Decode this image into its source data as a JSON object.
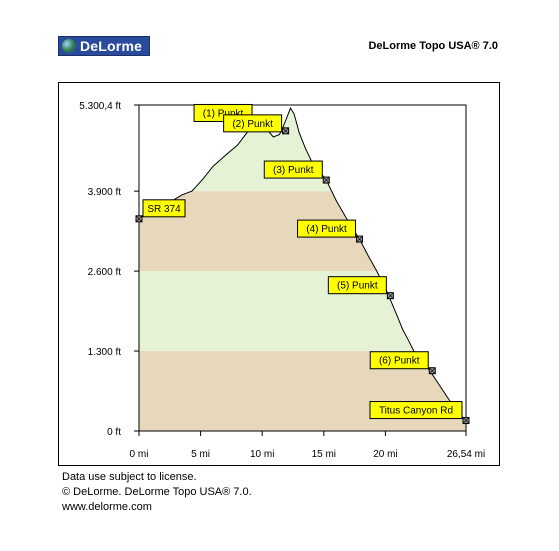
{
  "header": {
    "logo_text": "DeLorme",
    "app_title": "DeLorme Topo USA® 7.0"
  },
  "footer": {
    "line1": "Data use subject to license.",
    "line2": "© DeLorme. DeLorme Topo USA® 7.0.",
    "line3": "www.delorme.com"
  },
  "colors": {
    "band_dark": "#e7d8bc",
    "band_light": "#e6f2d6",
    "label_bg": "#ffff00",
    "profile_line": "#000000"
  },
  "chart_data": {
    "type": "area",
    "xlabel": "",
    "ylabel": "",
    "xlim": [
      0,
      26.54
    ],
    "ylim": [
      0,
      5300.4
    ],
    "x_ticks": [
      {
        "value": 0,
        "label": "0 mi"
      },
      {
        "value": 5,
        "label": "5 mi"
      },
      {
        "value": 10,
        "label": "10 mi"
      },
      {
        "value": 15,
        "label": "15 mi"
      },
      {
        "value": 20,
        "label": "20 mi"
      },
      {
        "value": 26.54,
        "label": "26,54 mi"
      }
    ],
    "y_ticks": [
      {
        "value": 0,
        "label": "0 ft"
      },
      {
        "value": 1300,
        "label": "1.300 ft"
      },
      {
        "value": 2600,
        "label": "2.600 ft"
      },
      {
        "value": 3900,
        "label": "3.900 ft"
      },
      {
        "value": 5300.4,
        "label": "5.300,4 ft"
      }
    ],
    "bands": [
      {
        "from": 0,
        "to": 1300,
        "tone": "dark"
      },
      {
        "from": 1300,
        "to": 2600,
        "tone": "light"
      },
      {
        "from": 2600,
        "to": 3900,
        "tone": "dark"
      },
      {
        "from": 3900,
        "to": 5300.4,
        "tone": "light"
      }
    ],
    "profile": [
      {
        "x": 0,
        "y": 3450
      },
      {
        "x": 0.5,
        "y": 3520
      },
      {
        "x": 1.5,
        "y": 3620
      },
      {
        "x": 2.5,
        "y": 3720
      },
      {
        "x": 3.5,
        "y": 3840
      },
      {
        "x": 4.3,
        "y": 3900
      },
      {
        "x": 5.2,
        "y": 4100
      },
      {
        "x": 6.0,
        "y": 4300
      },
      {
        "x": 7.0,
        "y": 4480
      },
      {
        "x": 8.0,
        "y": 4650
      },
      {
        "x": 8.8,
        "y": 4860
      },
      {
        "x": 9.3,
        "y": 5020
      },
      {
        "x": 9.8,
        "y": 4950
      },
      {
        "x": 10.4,
        "y": 4900
      },
      {
        "x": 10.9,
        "y": 4780
      },
      {
        "x": 11.4,
        "y": 4820
      },
      {
        "x": 11.7,
        "y": 4950
      },
      {
        "x": 12.0,
        "y": 5100
      },
      {
        "x": 12.3,
        "y": 5250
      },
      {
        "x": 12.6,
        "y": 5150
      },
      {
        "x": 13.0,
        "y": 4850
      },
      {
        "x": 13.5,
        "y": 4600
      },
      {
        "x": 14.2,
        "y": 4300
      },
      {
        "x": 14.8,
        "y": 4180
      },
      {
        "x": 15.2,
        "y": 4080
      },
      {
        "x": 16.0,
        "y": 3750
      },
      {
        "x": 17.0,
        "y": 3400
      },
      {
        "x": 17.9,
        "y": 3120
      },
      {
        "x": 18.6,
        "y": 2850
      },
      {
        "x": 19.3,
        "y": 2600
      },
      {
        "x": 20.2,
        "y": 2230
      },
      {
        "x": 21.0,
        "y": 1850
      },
      {
        "x": 21.4,
        "y": 1650
      },
      {
        "x": 21.8,
        "y": 1500
      },
      {
        "x": 22.3,
        "y": 1300
      },
      {
        "x": 23.0,
        "y": 1120
      },
      {
        "x": 23.6,
        "y": 980
      },
      {
        "x": 24.3,
        "y": 770
      },
      {
        "x": 25.0,
        "y": 560
      },
      {
        "x": 25.8,
        "y": 320
      },
      {
        "x": 26.54,
        "y": 170
      }
    ],
    "waypoints": [
      {
        "label": "SR 374",
        "x": 0,
        "y": 3450,
        "label_side": "right",
        "label_dy": -2
      },
      {
        "label": "(1) Punkt",
        "x": 9.5,
        "y": 5000,
        "label_side": "left",
        "label_dy": -2
      },
      {
        "label": "(2) Punkt",
        "x": 11.9,
        "y": 4880,
        "label_side": "left",
        "label_dy": 1
      },
      {
        "label": "(3) Punkt",
        "x": 15.2,
        "y": 4080,
        "label_side": "left",
        "label_dy": -2
      },
      {
        "label": "(4) Punkt",
        "x": 17.9,
        "y": 3120,
        "label_side": "left",
        "label_dy": -2
      },
      {
        "label": "(5) Punkt",
        "x": 20.4,
        "y": 2200,
        "label_side": "left",
        "label_dy": -2
      },
      {
        "label": "(6) Punkt",
        "x": 23.8,
        "y": 980,
        "label_side": "left",
        "label_dy": -2
      },
      {
        "label": "Titus Canyon Rd",
        "x": 26.54,
        "y": 170,
        "label_side": "left",
        "label_dy": -2
      }
    ]
  }
}
